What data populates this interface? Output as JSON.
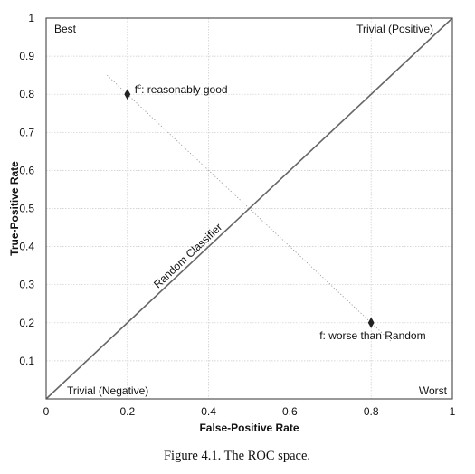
{
  "chart_data": {
    "type": "scatter",
    "title": "",
    "xlabel": "False-Positive Rate",
    "ylabel": "True-Positive Rate",
    "xlim": [
      0,
      1
    ],
    "ylim": [
      0,
      1
    ],
    "x_ticks": [
      {
        "value": 0,
        "label": "0"
      },
      {
        "value": 0.2,
        "label": "0.2"
      },
      {
        "value": 0.4,
        "label": "0.4"
      },
      {
        "value": 0.6,
        "label": "0.6"
      },
      {
        "value": 0.8,
        "label": "0.8"
      },
      {
        "value": 1,
        "label": "1"
      }
    ],
    "y_ticks": [
      {
        "value": 0.1,
        "label": "0.1"
      },
      {
        "value": 0.2,
        "label": "0.2"
      },
      {
        "value": 0.3,
        "label": "0.3"
      },
      {
        "value": 0.4,
        "label": "0.4"
      },
      {
        "value": 0.5,
        "label": "0.5"
      },
      {
        "value": 0.6,
        "label": "0.6"
      },
      {
        "value": 0.7,
        "label": "0.7"
      },
      {
        "value": 0.8,
        "label": "0.8"
      },
      {
        "value": 0.9,
        "label": "0.9"
      },
      {
        "value": 1,
        "label": "1"
      }
    ],
    "grid": true,
    "points": [
      {
        "x": 0.2,
        "y": 0.8,
        "label_base": "f",
        "label_sup": "c",
        "label_rest": ": reasonably good"
      },
      {
        "x": 0.8,
        "y": 0.2,
        "label_base": "f",
        "label_sup": "",
        "label_rest": ": worse than Random"
      }
    ],
    "reference_line": {
      "x": [
        0,
        1
      ],
      "y": [
        0,
        1
      ],
      "label": "Random Classifier"
    },
    "reflection_line": {
      "x": [
        0.15,
        0.85
      ],
      "y": [
        0.85,
        0.15
      ]
    },
    "corner_labels": {
      "top_left": "Best",
      "top_right": "Trivial (Positive)",
      "bottom_left": "Trivial (Negative)",
      "bottom_right": "Worst"
    },
    "caption": "Figure 4.1.  The ROC space."
  }
}
